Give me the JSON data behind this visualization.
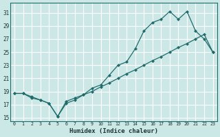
{
  "background_color": "#cce8e6",
  "grid_color": "#ffffff",
  "line_color": "#1f6b6b",
  "xlabel": "Humidex (Indice chaleur)",
  "xlim": [
    -0.5,
    23.5
  ],
  "ylim": [
    14.5,
    32.5
  ],
  "xticks": [
    0,
    1,
    2,
    3,
    4,
    5,
    6,
    7,
    8,
    9,
    10,
    11,
    12,
    13,
    14,
    15,
    16,
    17,
    18,
    19,
    20,
    21,
    22,
    23
  ],
  "yticks": [
    15,
    17,
    19,
    21,
    23,
    25,
    27,
    29,
    31
  ],
  "line1_x": [
    0,
    1,
    2,
    3,
    4,
    5,
    6,
    7,
    8,
    9,
    10,
    11,
    12,
    13,
    14,
    15,
    16,
    17,
    18,
    19,
    20,
    21,
    22,
    23
  ],
  "line1_y": [
    18.7,
    18.7,
    18.2,
    17.7,
    17.2,
    15.2,
    17.2,
    17.7,
    18.5,
    19.5,
    20.0,
    21.5,
    23.0,
    23.5,
    25.5,
    28.2,
    29.5,
    30.0,
    31.2,
    30.0,
    31.2,
    28.2,
    27.0,
    25.0
  ],
  "line2_x": [
    0,
    1,
    2,
    3,
    4,
    5,
    6,
    7,
    8,
    9,
    10,
    11,
    12,
    13,
    14,
    15,
    16,
    17,
    18,
    19,
    20,
    21,
    22,
    23
  ],
  "line2_y": [
    18.7,
    18.7,
    18.0,
    17.7,
    17.2,
    15.2,
    17.5,
    18.0,
    18.5,
    19.0,
    19.7,
    20.3,
    21.0,
    21.7,
    22.3,
    23.0,
    23.7,
    24.3,
    25.0,
    25.7,
    26.3,
    27.0,
    27.7,
    25.0
  ]
}
